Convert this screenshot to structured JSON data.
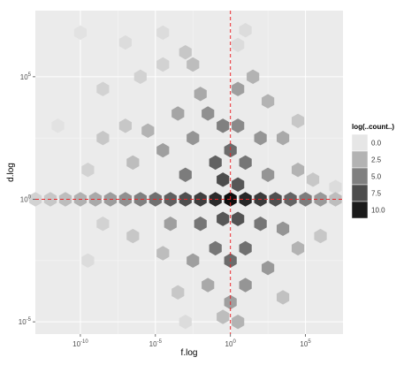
{
  "chart_data": {
    "type": "hexbin",
    "xlabel": "f.log",
    "ylabel": "d.log",
    "x_scale": "log10",
    "y_scale": "log10",
    "xlim_exponent": [
      -13,
      7.5
    ],
    "ylim_exponent": [
      -5.5,
      7.7
    ],
    "x_ticks": [
      {
        "exponent": -10,
        "base": "10",
        "sup": "-10"
      },
      {
        "exponent": -5,
        "base": "10",
        "sup": "-5"
      },
      {
        "exponent": 0,
        "base": "10",
        "sup": "0"
      },
      {
        "exponent": 5,
        "base": "10",
        "sup": "5"
      }
    ],
    "y_ticks": [
      {
        "exponent": -5,
        "base": "10",
        "sup": "-5"
      },
      {
        "exponent": 0,
        "base": "10",
        "sup": "0"
      },
      {
        "exponent": 5,
        "base": "10",
        "sup": "5"
      }
    ],
    "reference_lines": {
      "x_exponent": 0,
      "y_exponent": 0,
      "color": "#e8262a",
      "style": "dashed"
    },
    "grid": true,
    "background": "#ebebeb",
    "fill_scale": {
      "title": "log(..count..)",
      "low_color": "#e6e6e6",
      "high_color": "#0a0a0a",
      "range": [
        0,
        10.8
      ],
      "entries": [
        {
          "value": 0,
          "label": "0.0"
        },
        {
          "value": 2.5,
          "label": "2.5"
        },
        {
          "value": 5,
          "label": "5.0"
        },
        {
          "value": 7.5,
          "label": "7.5"
        },
        {
          "value": 10,
          "label": "10.0"
        }
      ],
      "legend_position": "right"
    },
    "hexagons": [
      {
        "x": -10.0,
        "y": 6.8,
        "v": 0.2
      },
      {
        "x": -7.0,
        "y": 6.4,
        "v": 0.5
      },
      {
        "x": -4.5,
        "y": 6.8,
        "v": 0.5
      },
      {
        "x": 0.5,
        "y": 6.3,
        "v": 0.5
      },
      {
        "x": 1.0,
        "y": 6.9,
        "v": 0.5
      },
      {
        "x": -11.5,
        "y": 3.0,
        "v": 0.2
      },
      {
        "x": -8.5,
        "y": 4.5,
        "v": 1.0
      },
      {
        "x": -8.5,
        "y": 2.5,
        "v": 1.5
      },
      {
        "x": -7.0,
        "y": 3.0,
        "v": 1.5
      },
      {
        "x": -6.5,
        "y": 1.5,
        "v": 2.0
      },
      {
        "x": -9.5,
        "y": 1.2,
        "v": 1.0
      },
      {
        "x": -4.5,
        "y": 5.5,
        "v": 1.0
      },
      {
        "x": -3.0,
        "y": 6.0,
        "v": 1.5
      },
      {
        "x": -2.5,
        "y": 5.5,
        "v": 2.0
      },
      {
        "x": -6.0,
        "y": 5.0,
        "v": 1.0
      },
      {
        "x": -2.5,
        "y": 2.5,
        "v": 4.0
      },
      {
        "x": -1.5,
        "y": 3.5,
        "v": 4.2
      },
      {
        "x": -3.5,
        "y": 3.5,
        "v": 3.2
      },
      {
        "x": -2.0,
        "y": 4.3,
        "v": 3.0
      },
      {
        "x": 0.5,
        "y": 4.5,
        "v": 3.5
      },
      {
        "x": 1.5,
        "y": 5.0,
        "v": 2.5
      },
      {
        "x": 2.5,
        "y": 4.0,
        "v": 2.5
      },
      {
        "x": 2.0,
        "y": 2.5,
        "v": 4.0
      },
      {
        "x": 3.5,
        "y": 2.5,
        "v": 3.0
      },
      {
        "x": 4.5,
        "y": 3.2,
        "v": 1.5
      },
      {
        "x": 4.5,
        "y": 1.2,
        "v": 2.5
      },
      {
        "x": 0.0,
        "y": 2.0,
        "v": 6.0
      },
      {
        "x": -1.0,
        "y": 1.5,
        "v": 6.5
      },
      {
        "x": 1.0,
        "y": 1.5,
        "v": 5.5
      },
      {
        "x": -4.5,
        "y": 2.0,
        "v": 3.5
      },
      {
        "x": -5.5,
        "y": 2.8,
        "v": 2.5
      },
      {
        "x": -0.5,
        "y": 3.0,
        "v": 5.0
      },
      {
        "x": 0.5,
        "y": 3.0,
        "v": 4.5
      },
      {
        "x": -3.0,
        "y": 1.0,
        "v": 5.2
      },
      {
        "x": 2.5,
        "y": 1.0,
        "v": 4.0
      },
      {
        "x": 5.5,
        "y": 0.8,
        "v": 1.5
      },
      {
        "x": 7.0,
        "y": 0.5,
        "v": 0.5
      },
      {
        "x": -0.5,
        "y": 0.8,
        "v": 7.5
      },
      {
        "x": 0.5,
        "y": 0.6,
        "v": 7.0
      },
      {
        "x": -13.0,
        "y": 0.0,
        "v": 1.0
      },
      {
        "x": -12.0,
        "y": 0.0,
        "v": 1.5
      },
      {
        "x": -11.0,
        "y": 0.0,
        "v": 2.0
      },
      {
        "x": -10.0,
        "y": 0.0,
        "v": 2.6
      },
      {
        "x": -9.0,
        "y": 0.0,
        "v": 3.0
      },
      {
        "x": -8.0,
        "y": 0.0,
        "v": 3.6
      },
      {
        "x": -7.0,
        "y": 0.0,
        "v": 4.2
      },
      {
        "x": -6.0,
        "y": 0.0,
        "v": 5.0
      },
      {
        "x": -5.0,
        "y": 0.0,
        "v": 5.8
      },
      {
        "x": -4.0,
        "y": 0.0,
        "v": 6.6
      },
      {
        "x": -3.0,
        "y": 0.0,
        "v": 7.4
      },
      {
        "x": -2.0,
        "y": 0.0,
        "v": 8.2
      },
      {
        "x": -1.0,
        "y": 0.0,
        "v": 9.2
      },
      {
        "x": 0.0,
        "y": 0.0,
        "v": 10.6
      },
      {
        "x": 1.0,
        "y": 0.0,
        "v": 9.4
      },
      {
        "x": 2.0,
        "y": 0.0,
        "v": 8.4
      },
      {
        "x": 3.0,
        "y": 0.0,
        "v": 7.4
      },
      {
        "x": 4.0,
        "y": 0.0,
        "v": 6.4
      },
      {
        "x": 5.0,
        "y": 0.0,
        "v": 5.2
      },
      {
        "x": 6.0,
        "y": 0.0,
        "v": 3.8
      },
      {
        "x": 7.0,
        "y": 0.0,
        "v": 2.0
      },
      {
        "x": -0.5,
        "y": -0.8,
        "v": 7.0
      },
      {
        "x": 0.5,
        "y": -0.8,
        "v": 7.2
      },
      {
        "x": -2.0,
        "y": -1.0,
        "v": 5.5
      },
      {
        "x": 2.0,
        "y": -1.0,
        "v": 5.5
      },
      {
        "x": -4.0,
        "y": -1.0,
        "v": 3.5
      },
      {
        "x": 3.5,
        "y": -1.2,
        "v": 4.0
      },
      {
        "x": -1.0,
        "y": -2.0,
        "v": 5.5
      },
      {
        "x": 1.0,
        "y": -2.0,
        "v": 5.8
      },
      {
        "x": 0.0,
        "y": -2.5,
        "v": 6.0
      },
      {
        "x": -2.5,
        "y": -2.5,
        "v": 3.5
      },
      {
        "x": 2.5,
        "y": -2.8,
        "v": 3.8
      },
      {
        "x": -4.5,
        "y": -2.2,
        "v": 2.0
      },
      {
        "x": 4.5,
        "y": -2.0,
        "v": 2.5
      },
      {
        "x": -6.5,
        "y": -1.5,
        "v": 1.5
      },
      {
        "x": 6.0,
        "y": -1.5,
        "v": 1.5
      },
      {
        "x": -1.5,
        "y": -3.5,
        "v": 3.0
      },
      {
        "x": 1.0,
        "y": -3.5,
        "v": 4.0
      },
      {
        "x": 0.0,
        "y": -4.2,
        "v": 3.5
      },
      {
        "x": 3.5,
        "y": -4.0,
        "v": 1.8
      },
      {
        "x": -3.5,
        "y": -3.8,
        "v": 1.5
      },
      {
        "x": -0.5,
        "y": -4.8,
        "v": 2.0
      },
      {
        "x": 0.5,
        "y": -5.0,
        "v": 2.5
      },
      {
        "x": -3.0,
        "y": -5.0,
        "v": 0.5
      },
      {
        "x": -9.5,
        "y": -2.5,
        "v": 0.5
      },
      {
        "x": -8.5,
        "y": -1.0,
        "v": 1.0
      }
    ]
  }
}
